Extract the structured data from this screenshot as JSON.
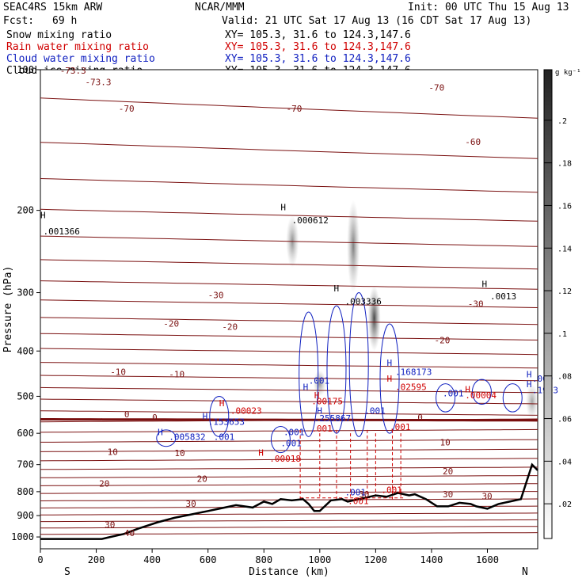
{
  "header": {
    "model": "SEAC4RS 15km ARW",
    "org": "NCAR/MMM",
    "init": "Init: 00 UTC Thu 15 Aug 13",
    "fcst_label": "Fcst:",
    "fcst_value": "69 h",
    "valid": "Valid: 21 UTC Sat 17 Aug 13 (16 CDT Sat 17 Aug 13)",
    "xy": "XY= 105.3, 31.6 to 124.3,147.6"
  },
  "fields": [
    {
      "name": "Snow mixing ratio",
      "color": "#000000"
    },
    {
      "name": "Rain water mixing ratio",
      "color": "#d00000"
    },
    {
      "name": "Cloud water mixing ratio",
      "color": "#1020c0"
    },
    {
      "name": "Cloud ice mixing ratio",
      "color": "#000000"
    }
  ],
  "chart_data": {
    "type": "cross-section",
    "xlabel": "Distance (km)",
    "ylabel": "Pressure (hPa)",
    "xlim": [
      0,
      1780
    ],
    "ylim": [
      1060,
      100
    ],
    "y_scale": "log",
    "x_ticks": [
      0,
      200,
      400,
      600,
      800,
      1000,
      1200,
      1400,
      1600
    ],
    "x_ticks_labels": [
      "0",
      "200",
      "400",
      "600",
      "800",
      "1000",
      "1200",
      "1400",
      "1600"
    ],
    "y_ticks": [
      100,
      200,
      300,
      400,
      500,
      600,
      700,
      800,
      900,
      1000
    ],
    "y_ticks_labels": [
      "100",
      "200",
      "300",
      "400",
      "500",
      "600",
      "700",
      "800",
      "900",
      "1000"
    ],
    "endpoint_left": "S",
    "endpoint_right": "N",
    "colorbar_unit": "g kg⁻¹",
    "colorbar_ticks": [
      ".02",
      ".04",
      ".06",
      ".08",
      ".1",
      ".12",
      ".14",
      ".16",
      ".18",
      ".2"
    ],
    "terrain": {
      "x": [
        0,
        220,
        250,
        300,
        350,
        420,
        480,
        540,
        600,
        640,
        700,
        760,
        800,
        830,
        860,
        900,
        940,
        960,
        980,
        1000,
        1040,
        1080,
        1100,
        1140,
        1180,
        1200,
        1240,
        1280,
        1320,
        1340,
        1380,
        1420,
        1460,
        1500,
        1540,
        1560,
        1600,
        1640,
        1680,
        1720,
        1760,
        1780
      ],
      "p": [
        1010,
        1010,
        1000,
        985,
        960,
        930,
        910,
        895,
        880,
        870,
        855,
        865,
        840,
        850,
        830,
        835,
        830,
        850,
        880,
        880,
        835,
        830,
        840,
        830,
        820,
        815,
        820,
        805,
        815,
        810,
        830,
        860,
        860,
        845,
        850,
        860,
        870,
        850,
        840,
        830,
        700,
        720
      ]
    },
    "temperature_isotherms_C": [
      -73.3,
      -70,
      -60,
      -50,
      -40,
      -30,
      -20,
      -10,
      0,
      10,
      20,
      30,
      40
    ],
    "labels": [
      {
        "text": "-73.3",
        "x": 70,
        "p": 102,
        "color": "#7a1010"
      },
      {
        "text": "-73.3",
        "x": 160,
        "p": 108,
        "color": "#7a1010"
      },
      {
        "text": "-70",
        "x": 280,
        "p": 123,
        "color": "#7a1010"
      },
      {
        "text": "-70",
        "x": 880,
        "p": 123,
        "color": "#7a1010"
      },
      {
        "text": "-70",
        "x": 1390,
        "p": 111,
        "color": "#7a1010"
      },
      {
        "text": "-60",
        "x": 1520,
        "p": 145,
        "color": "#7a1010"
      },
      {
        "text": "-30",
        "x": 600,
        "p": 308,
        "color": "#7a1010"
      },
      {
        "text": "-30",
        "x": 1530,
        "p": 322,
        "color": "#7a1010"
      },
      {
        "text": "-20",
        "x": 440,
        "p": 355,
        "color": "#7a1010"
      },
      {
        "text": "-20",
        "x": 650,
        "p": 360,
        "color": "#7a1010"
      },
      {
        "text": "-20",
        "x": 1410,
        "p": 385,
        "color": "#7a1010"
      },
      {
        "text": "-10",
        "x": 250,
        "p": 450,
        "color": "#7a1010"
      },
      {
        "text": "-10",
        "x": 460,
        "p": 455,
        "color": "#7a1010"
      },
      {
        "text": "0",
        "x": 300,
        "p": 555,
        "color": "#7a1010"
      },
      {
        "text": "0",
        "x": 400,
        "p": 563,
        "color": "#7a1010"
      },
      {
        "text": "0",
        "x": 1350,
        "p": 563,
        "color": "#7a1010"
      },
      {
        "text": "10",
        "x": 240,
        "p": 667,
        "color": "#7a1010"
      },
      {
        "text": "10",
        "x": 480,
        "p": 672,
        "color": "#7a1010"
      },
      {
        "text": "10",
        "x": 1430,
        "p": 637,
        "color": "#7a1010"
      },
      {
        "text": "20",
        "x": 210,
        "p": 780,
        "color": "#7a1010"
      },
      {
        "text": "20",
        "x": 560,
        "p": 762,
        "color": "#7a1010"
      },
      {
        "text": "20",
        "x": 1440,
        "p": 735,
        "color": "#7a1010"
      },
      {
        "text": "30",
        "x": 520,
        "p": 862,
        "color": "#7a1010"
      },
      {
        "text": "30",
        "x": 230,
        "p": 955,
        "color": "#7a1010"
      },
      {
        "text": "30",
        "x": 1140,
        "p": 823,
        "color": "#7a1010"
      },
      {
        "text": "30",
        "x": 1440,
        "p": 823,
        "color": "#7a1010"
      },
      {
        "text": "30",
        "x": 1580,
        "p": 830,
        "color": "#7a1010"
      },
      {
        "text": "40",
        "x": 300,
        "p": 995,
        "color": "#7a1010"
      },
      {
        "text": "H",
        "x": 0,
        "p": 208,
        "color": "#000000"
      },
      {
        "text": ".001366",
        "x": 10,
        "p": 225,
        "color": "#000000"
      },
      {
        "text": "H",
        "x": 860,
        "p": 200,
        "color": "#000000"
      },
      {
        "text": ".000612",
        "x": 900,
        "p": 213,
        "color": "#000000"
      },
      {
        "text": "H",
        "x": 1050,
        "p": 298,
        "color": "#000000"
      },
      {
        "text": ".003336",
        "x": 1090,
        "p": 318,
        "color": "#000000"
      },
      {
        "text": "H",
        "x": 1580,
        "p": 292,
        "color": "#000000"
      },
      {
        "text": ".0013",
        "x": 1610,
        "p": 310,
        "color": "#000000"
      },
      {
        "text": "H",
        "x": 940,
        "p": 485,
        "color": "#1020c0"
      },
      {
        "text": ".001",
        "x": 960,
        "p": 470,
        "color": "#1020c0"
      },
      {
        "text": ".00175",
        "x": 970,
        "p": 520,
        "color": "#d00000"
      },
      {
        "text": "H",
        "x": 980,
        "p": 505,
        "color": "#d00000"
      },
      {
        "text": ".255867",
        "x": 980,
        "p": 565,
        "color": "#1020c0"
      },
      {
        "text": "H",
        "x": 990,
        "p": 545,
        "color": "#1020c0"
      },
      {
        "text": ".001",
        "x": 1160,
        "p": 545,
        "color": "#1020c0"
      },
      {
        "text": "H",
        "x": 1240,
        "p": 430,
        "color": "#1020c0"
      },
      {
        "text": ".168173",
        "x": 1270,
        "p": 450,
        "color": "#1020c0"
      },
      {
        "text": "H",
        "x": 1240,
        "p": 465,
        "color": "#d00000"
      },
      {
        "text": ".02595",
        "x": 1270,
        "p": 485,
        "color": "#d00000"
      },
      {
        "text": ".001",
        "x": 1250,
        "p": 590,
        "color": "#d00000"
      },
      {
        "text": ".001",
        "x": 970,
        "p": 595,
        "color": "#d00000"
      },
      {
        "text": ".001",
        "x": 870,
        "p": 605,
        "color": "#1020c0"
      },
      {
        "text": ".001",
        "x": 860,
        "p": 640,
        "color": "#1020c0"
      },
      {
        "text": "H",
        "x": 580,
        "p": 560,
        "color": "#1020c0"
      },
      {
        "text": ".153653",
        "x": 600,
        "p": 575,
        "color": "#1020c0"
      },
      {
        "text": "H",
        "x": 640,
        "p": 525,
        "color": "#d00000"
      },
      {
        "text": ".00023",
        "x": 680,
        "p": 545,
        "color": "#d00000"
      },
      {
        "text": ".001",
        "x": 620,
        "p": 620,
        "color": "#1020c0"
      },
      {
        "text": "H",
        "x": 420,
        "p": 605,
        "color": "#1020c0"
      },
      {
        "text": ".005832",
        "x": 460,
        "p": 620,
        "color": "#1020c0"
      },
      {
        "text": "H",
        "x": 780,
        "p": 670,
        "color": "#d00000"
      },
      {
        "text": ".00018",
        "x": 820,
        "p": 690,
        "color": "#d00000"
      },
      {
        "text": ".001",
        "x": 1440,
        "p": 500,
        "color": "#1020c0"
      },
      {
        "text": "H",
        "x": 1520,
        "p": 490,
        "color": "#d00000"
      },
      {
        "text": ".00004",
        "x": 1520,
        "p": 505,
        "color": "#d00000"
      },
      {
        "text": "H",
        "x": 1740,
        "p": 455,
        "color": "#1020c0"
      },
      {
        "text": ".000",
        "x": 1760,
        "p": 465,
        "color": "#1020c0"
      },
      {
        "text": "H",
        "x": 1740,
        "p": 478,
        "color": "#1020c0"
      },
      {
        "text": ".1993",
        "x": 1760,
        "p": 492,
        "color": "#1020c0"
      },
      {
        "text": ".001",
        "x": 1100,
        "p": 850,
        "color": "#d00000"
      },
      {
        "text": ".001",
        "x": 1220,
        "p": 805,
        "color": "#d00000"
      },
      {
        "text": ".001",
        "x": 1090,
        "p": 815,
        "color": "#1020c0"
      }
    ]
  }
}
